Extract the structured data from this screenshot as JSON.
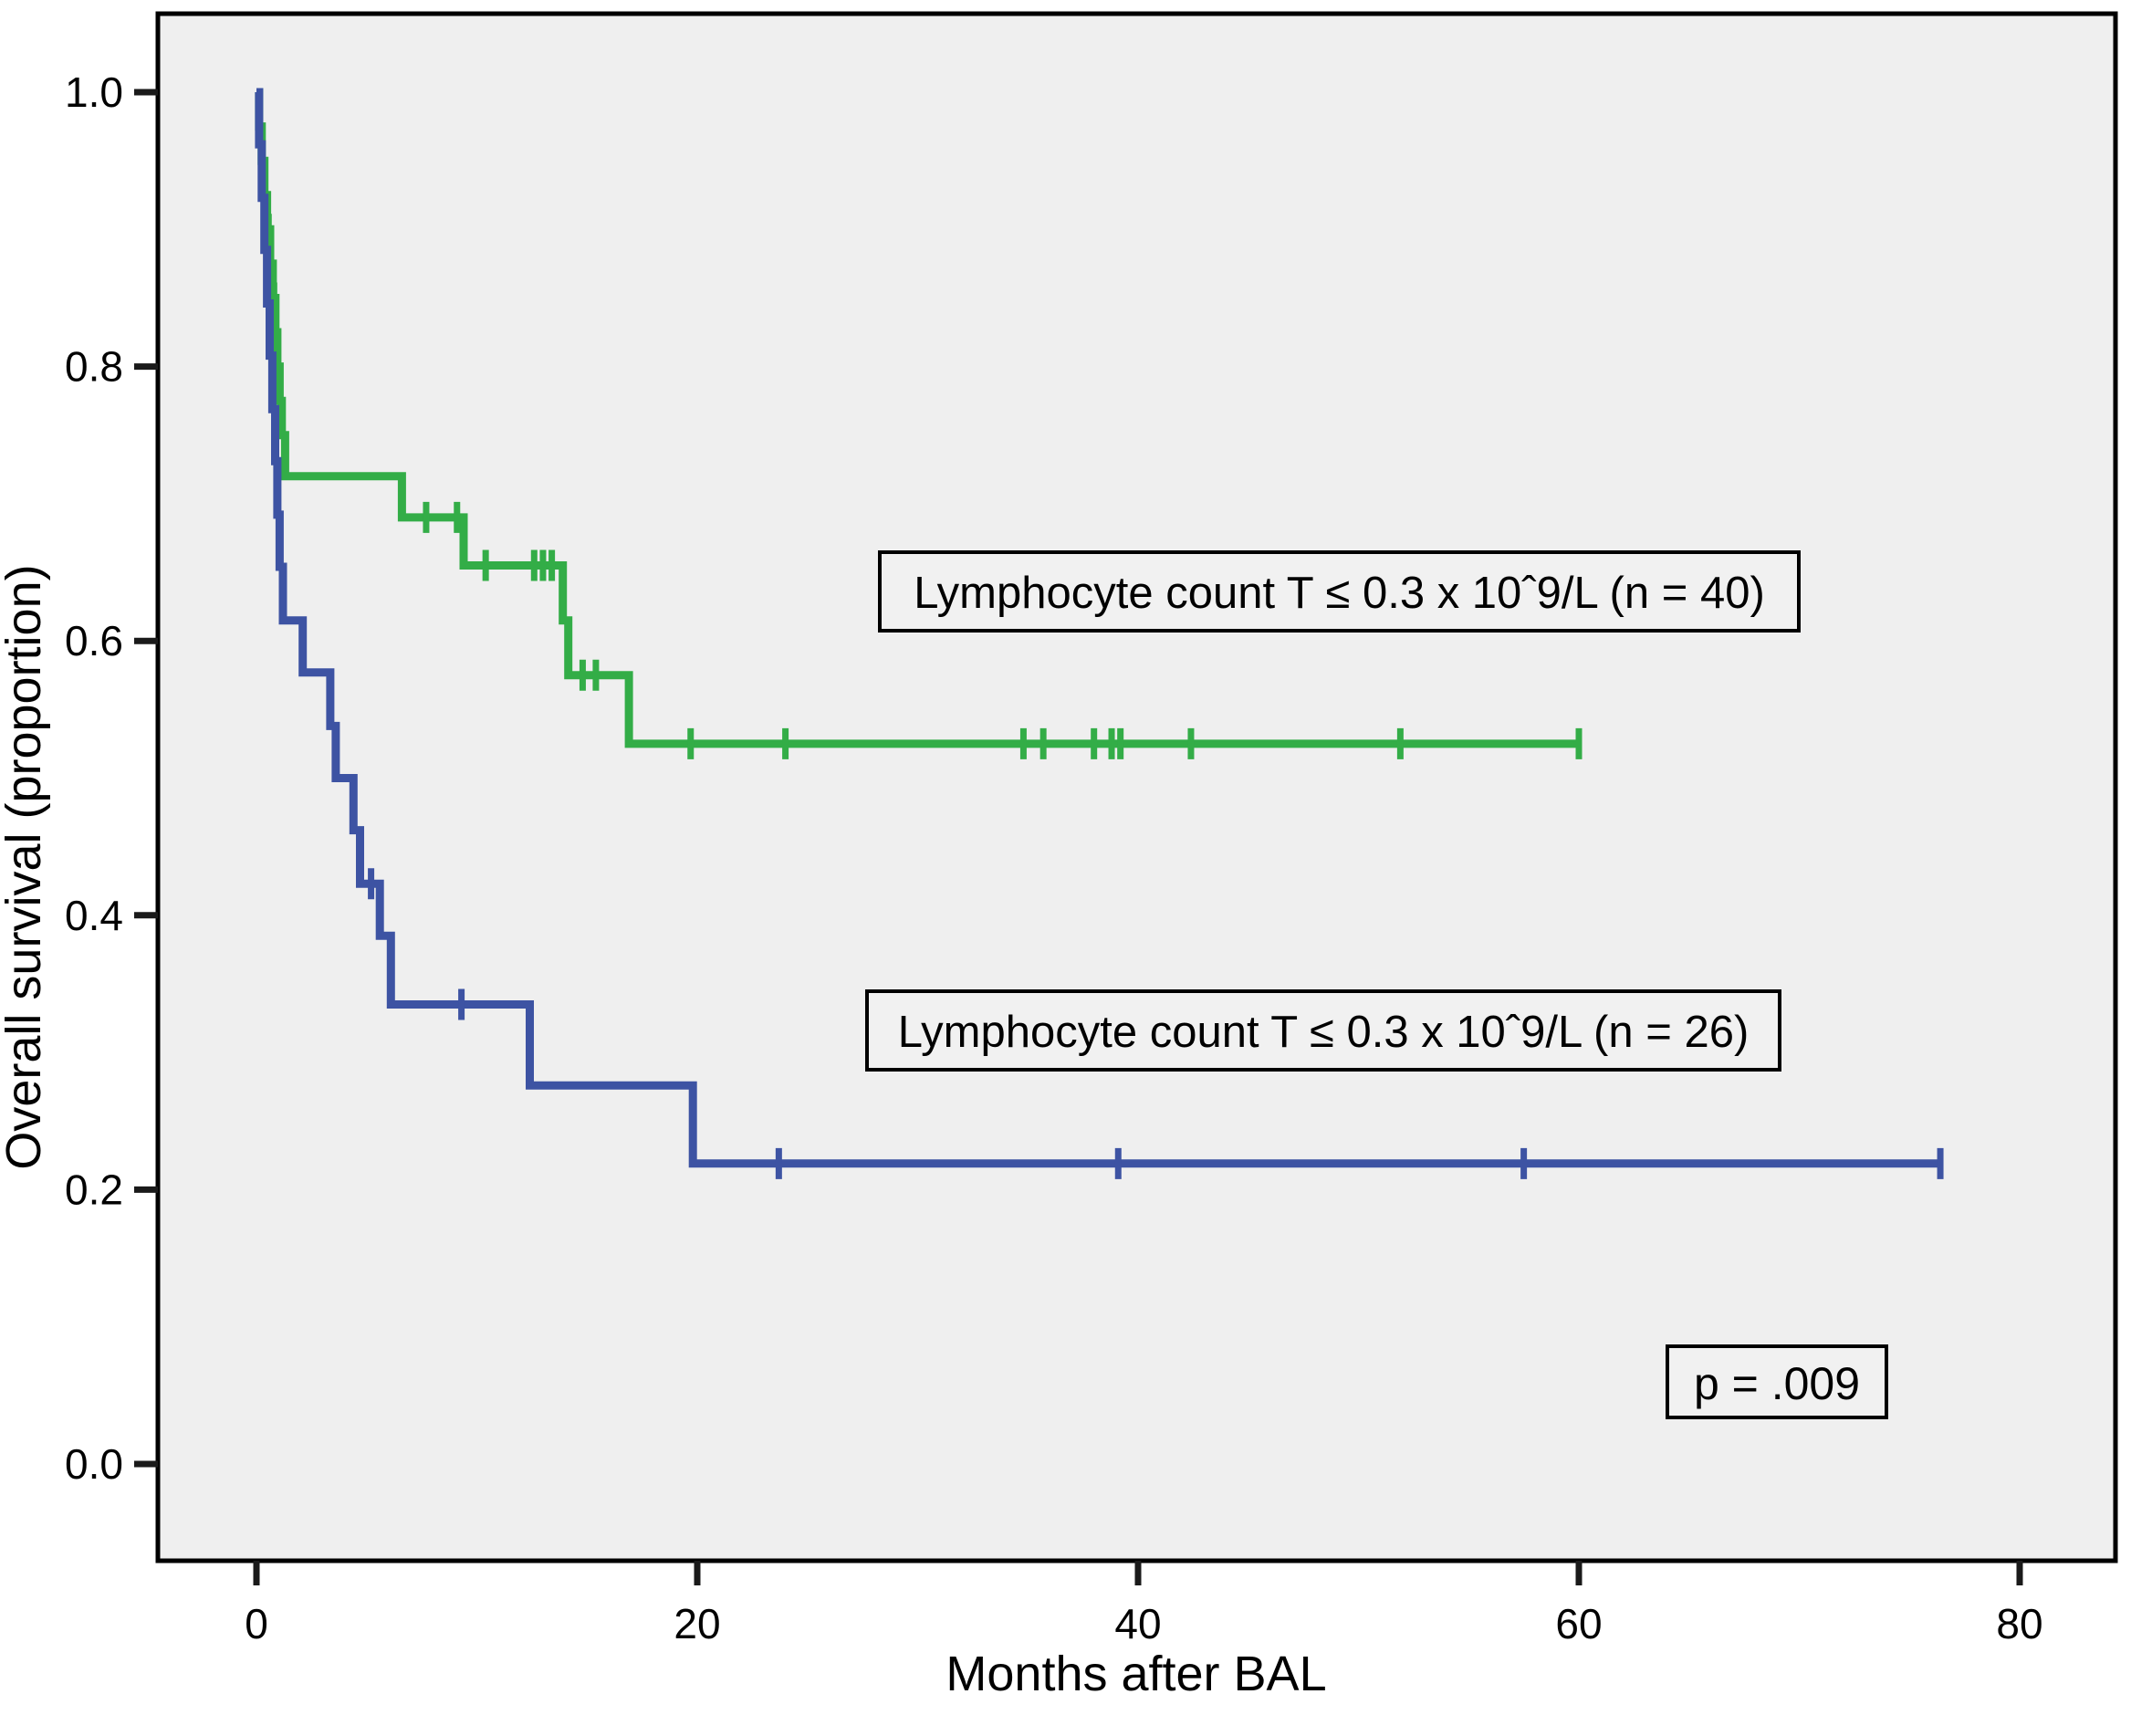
{
  "figure": {
    "background": "#ffffff",
    "plot_background": "#efefef",
    "border_color": "#000000",
    "tick_color": "#1a1a1a",
    "annotation_box_fill": "#f1f1f1",
    "annotation_box_border": "#000000"
  },
  "chart_data": {
    "type": "line",
    "subtype": "kaplan-meier-step",
    "title": "",
    "xlabel": "Months after BAL",
    "ylabel": "Overall survival (proportion)",
    "x_ticks": [
      {
        "value": 0,
        "label": "0"
      },
      {
        "value": 20,
        "label": "20"
      },
      {
        "value": 40,
        "label": "40"
      },
      {
        "value": 60,
        "label": "60"
      },
      {
        "value": 80,
        "label": "80"
      }
    ],
    "y_ticks": [
      {
        "value": 1.0,
        "label": "1.0"
      },
      {
        "value": 0.8,
        "label": "0.8"
      },
      {
        "value": 0.6,
        "label": "0.6"
      },
      {
        "value": 0.4,
        "label": "0.4"
      },
      {
        "value": 0.2,
        "label": "0.2"
      },
      {
        "value": 0.0,
        "label": "0.0"
      }
    ],
    "xlim": [
      -4.5,
      84.5
    ],
    "ylim": [
      -0.07,
      1.06
    ],
    "grid": false,
    "p_value_label": "p = .009",
    "series": [
      {
        "id": "green",
        "label": "Lymphocyte count T ≤ 0.3 x 10ˆ9/L (n = 40)",
        "n": 40,
        "color": "#33ad47",
        "points": [
          [
            0,
            1.0
          ],
          [
            0.12,
            0.975
          ],
          [
            0.24,
            0.95
          ],
          [
            0.36,
            0.925
          ],
          [
            0.48,
            0.9
          ],
          [
            0.62,
            0.875
          ],
          [
            0.74,
            0.85
          ],
          [
            0.86,
            0.825
          ],
          [
            0.95,
            0.8
          ],
          [
            1.05,
            0.775
          ],
          [
            1.15,
            0.75
          ],
          [
            1.3,
            0.72
          ],
          [
            6.6,
            0.69
          ],
          [
            9.4,
            0.655
          ],
          [
            13.9,
            0.615
          ],
          [
            14.15,
            0.575
          ],
          [
            16.9,
            0.525
          ],
          [
            60,
            0.525
          ]
        ],
        "censors": [
          [
            0.55,
            0.9
          ],
          [
            0.8,
            0.85
          ],
          [
            7.7,
            0.69
          ],
          [
            9.1,
            0.69
          ],
          [
            10.4,
            0.655
          ],
          [
            12.6,
            0.655
          ],
          [
            13.0,
            0.655
          ],
          [
            13.4,
            0.655
          ],
          [
            14.8,
            0.575
          ],
          [
            15.4,
            0.575
          ],
          [
            19.7,
            0.525
          ],
          [
            24.0,
            0.525
          ],
          [
            34.8,
            0.525
          ],
          [
            35.7,
            0.525
          ],
          [
            38.0,
            0.525
          ],
          [
            38.8,
            0.525
          ],
          [
            39.2,
            0.525
          ],
          [
            42.4,
            0.525
          ],
          [
            51.9,
            0.525
          ],
          [
            60,
            0.525
          ]
        ]
      },
      {
        "id": "blue",
        "label": "Lymphocyte count T ≤ 0.3 x 10ˆ9/L (n = 26)",
        "n": 26,
        "color": "#3d53a3",
        "points": [
          [
            0,
            1.0
          ],
          [
            0.12,
            0.962
          ],
          [
            0.24,
            0.923
          ],
          [
            0.36,
            0.885
          ],
          [
            0.48,
            0.846
          ],
          [
            0.6,
            0.808
          ],
          [
            0.72,
            0.769
          ],
          [
            0.85,
            0.731
          ],
          [
            0.95,
            0.692
          ],
          [
            1.05,
            0.654
          ],
          [
            1.2,
            0.615
          ],
          [
            2.1,
            0.577
          ],
          [
            3.35,
            0.538
          ],
          [
            3.6,
            0.5
          ],
          [
            4.4,
            0.462
          ],
          [
            4.7,
            0.423
          ],
          [
            5.6,
            0.385
          ],
          [
            6.1,
            0.335
          ],
          [
            12.4,
            0.276
          ],
          [
            19.8,
            0.219
          ],
          [
            76.4,
            0.219
          ]
        ],
        "censors": [
          [
            5.2,
            0.423
          ],
          [
            9.3,
            0.335
          ],
          [
            23.7,
            0.219
          ],
          [
            39.1,
            0.219
          ],
          [
            57.5,
            0.219
          ],
          [
            76.4,
            0.219
          ]
        ]
      }
    ]
  }
}
